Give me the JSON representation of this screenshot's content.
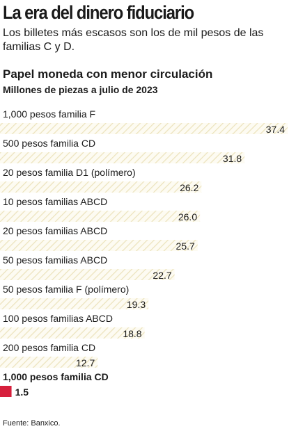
{
  "header": {
    "title": "La era del dinero fiduciario",
    "subtitle": "Los billetes más escasos son los de mil pesos de las familias C y D."
  },
  "colors": {
    "bar_hatch": "#ece3bd",
    "bar_fill": "#fdfbf2",
    "highlight": "#d61f3c",
    "text": "#1a1a1a"
  },
  "chart_data": {
    "type": "bar",
    "orientation": "horizontal",
    "title": "Papel moneda con menor circulación",
    "subtitle": "Millones de piezas a julio de 2023",
    "categories": [
      "1,000 pesos familia F",
      "500 pesos familia CD",
      "20 pesos familia D1 (polímero)",
      "10 pesos familias ABCD",
      "20 pesos familias ABCD",
      "50 pesos familias ABCD",
      "50 pesos familia F (polímero)",
      "100 pesos familias ABCD",
      "200 pesos familia CD",
      "1,000 pesos familia CD"
    ],
    "values": [
      37.4,
      31.8,
      26.2,
      26.0,
      25.7,
      22.7,
      19.3,
      18.8,
      12.7,
      1.5
    ],
    "value_labels": [
      "37.4",
      "31.8",
      "26.2",
      "26.0",
      "25.7",
      "22.7",
      "19.3",
      "18.8",
      "12.7",
      "1.5"
    ],
    "highlighted": "1,000 pesos familia CD",
    "xlim": [
      0,
      37.4
    ],
    "grid": false,
    "legend": "none"
  },
  "footer": {
    "source": "Fuente: Banxico."
  }
}
